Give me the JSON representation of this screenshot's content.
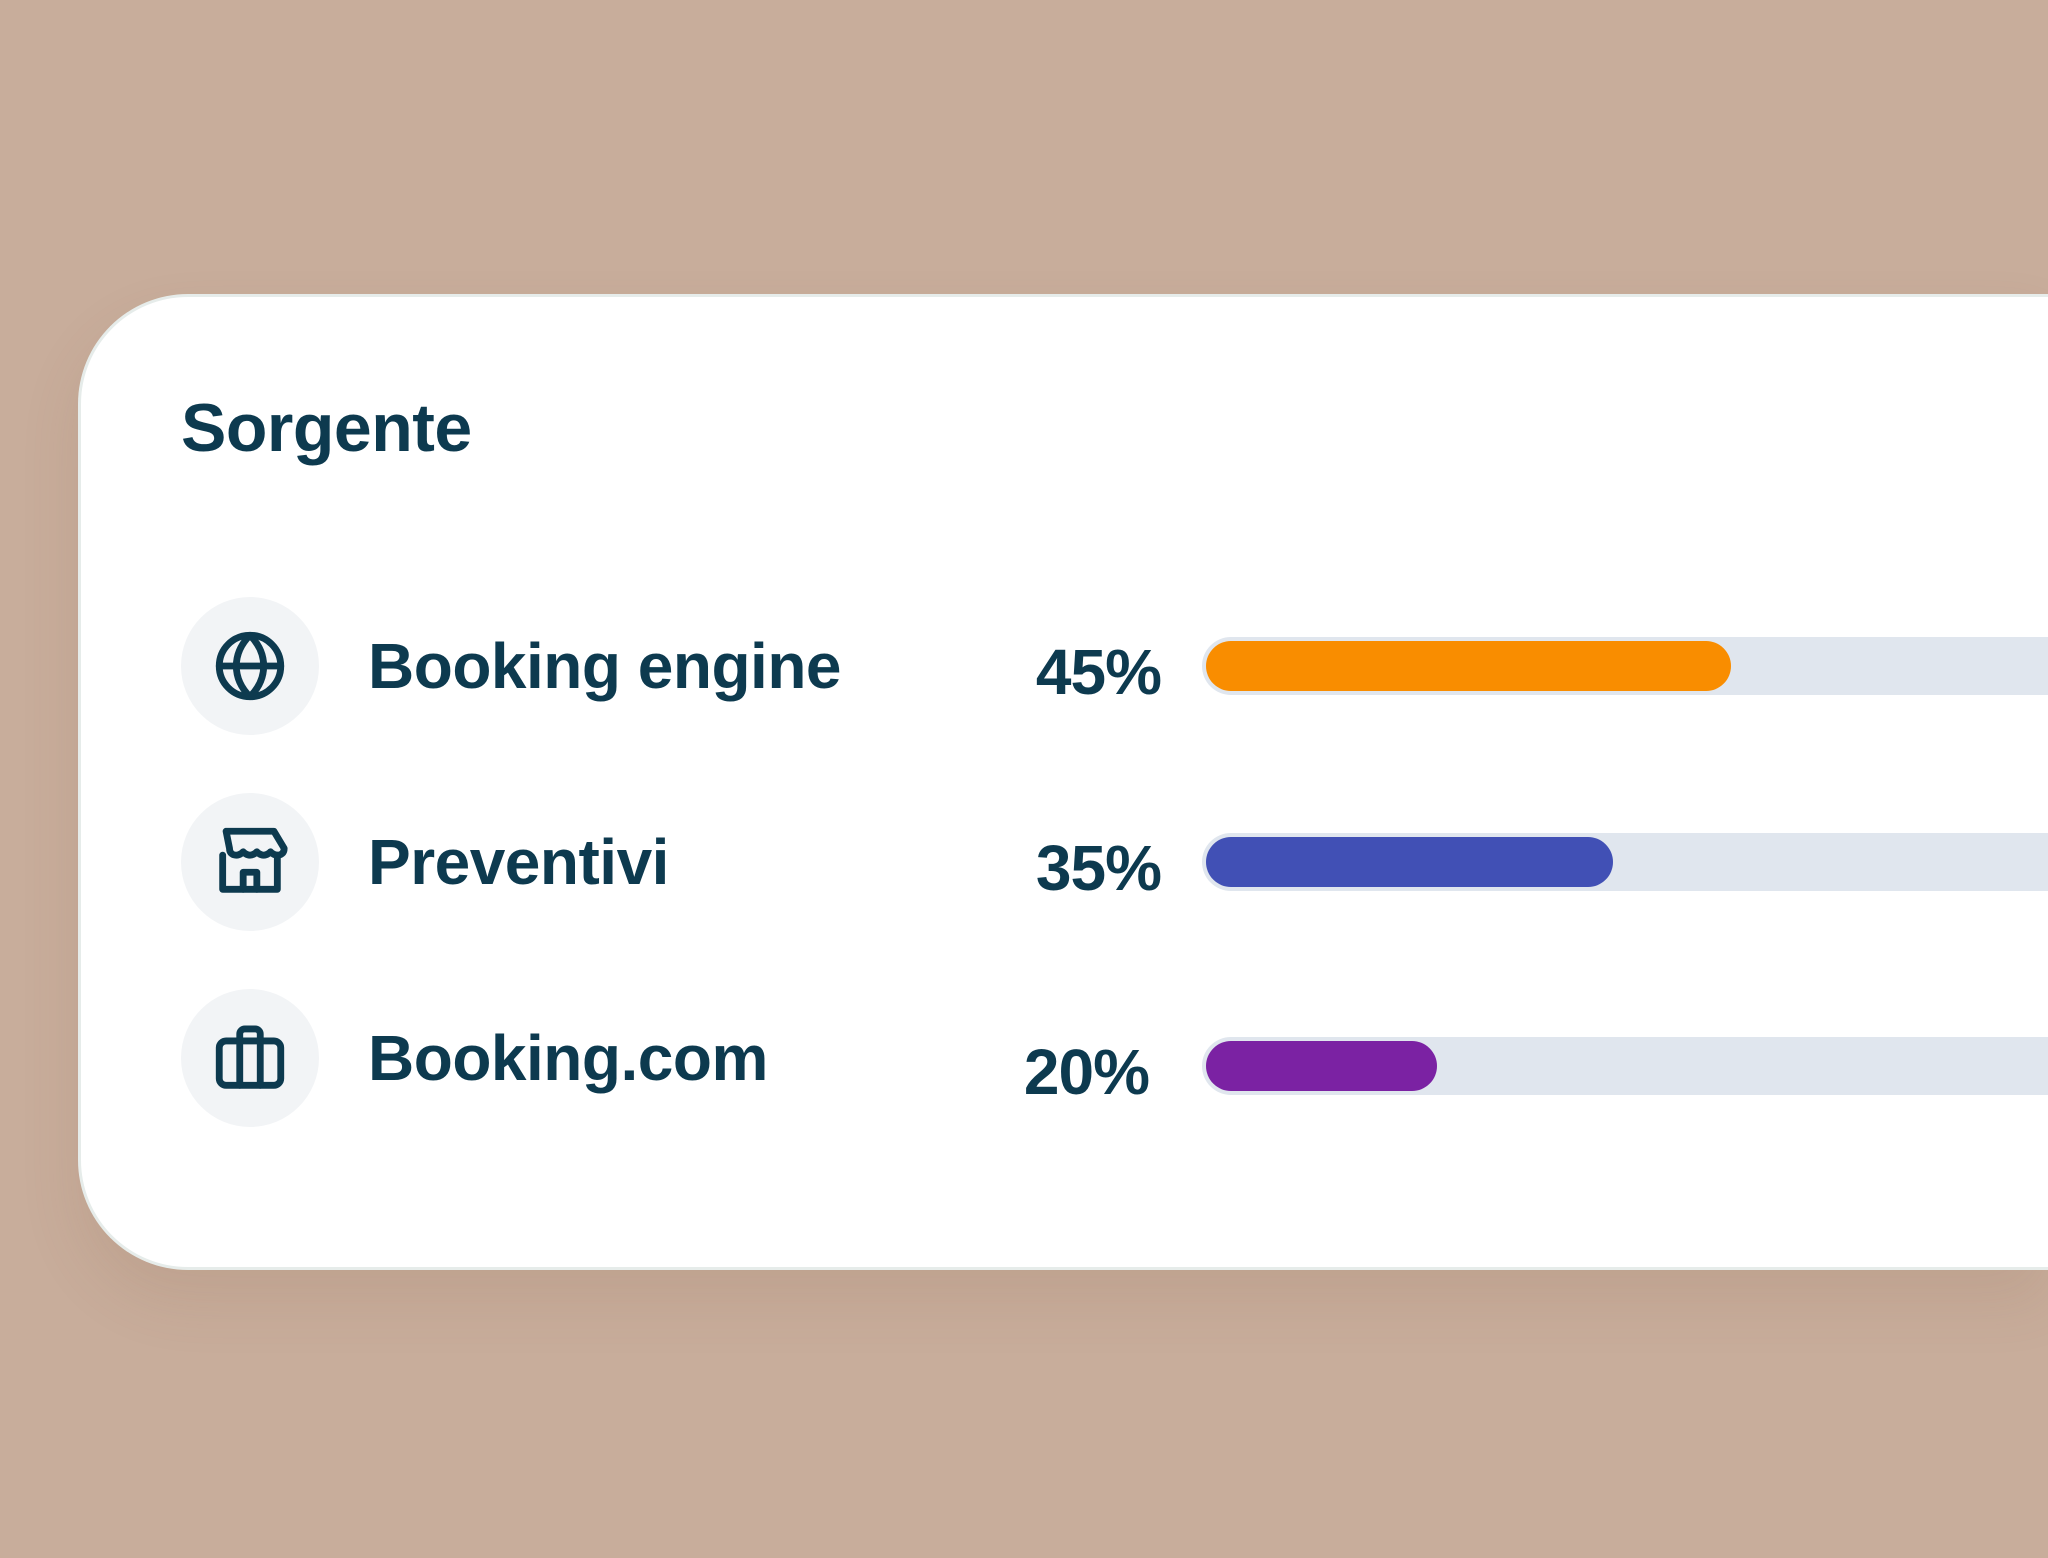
{
  "card": {
    "title": "Sorgente",
    "rows": [
      {
        "label": "Booking engine",
        "percent_label": "45%",
        "value": 45,
        "color": "#f98d00",
        "icon": "globe-icon"
      },
      {
        "label": "Preventivi",
        "percent_label": "35%",
        "value": 35,
        "color": "#4150b5",
        "icon": "store-icon"
      },
      {
        "label": "Booking.com",
        "percent_label": "20%",
        "value": 20,
        "color": "#7b22a3",
        "icon": "suitcase-icon"
      }
    ]
  }
}
